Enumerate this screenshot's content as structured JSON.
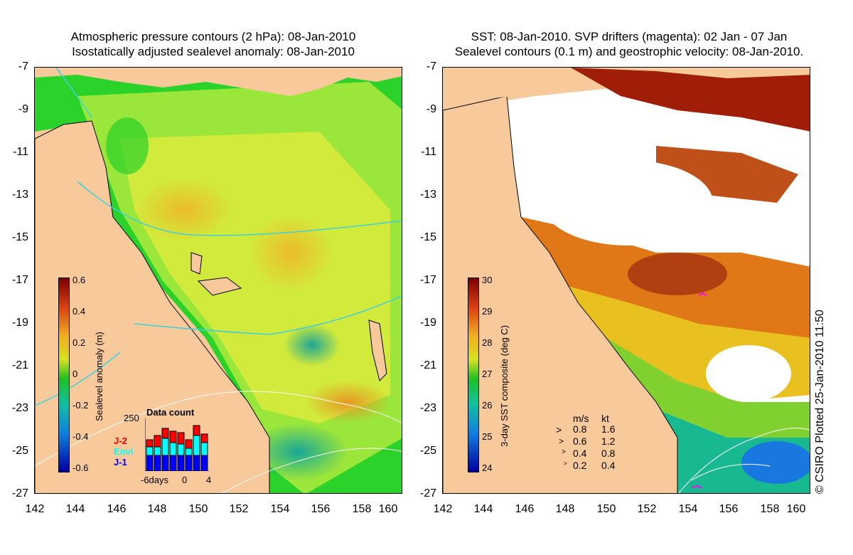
{
  "left_panel": {
    "title_line1": "Atmospheric pressure contours (2 hPa): 08-Jan-2010",
    "title_line2": "Isostatically adjusted sealevel anomaly: 08-Jan-2010",
    "y_ticks": [
      "-7",
      "-9",
      "-11",
      "-13",
      "-15",
      "-17",
      "-19",
      "-21",
      "-23",
      "-25",
      "-27"
    ],
    "x_ticks": [
      "142",
      "144",
      "146",
      "148",
      "150",
      "152",
      "154",
      "156",
      "158",
      "160"
    ],
    "colorbar": {
      "label": "Sealevel anomaly (m)",
      "ticks": [
        "0.6",
        "0.4",
        "0.2",
        "0",
        "-0.2",
        "-0.4",
        "-0.6"
      ],
      "min": -0.6,
      "max": 0.6
    },
    "data_count": {
      "title": "Data count",
      "max_label": "250",
      "axis_labels": [
        "-6days",
        "0",
        "4"
      ],
      "missions": [
        {
          "name": "J-2",
          "color": "#ff0000"
        },
        {
          "name": "Envi",
          "color": "#00ffff"
        },
        {
          "name": "J-1",
          "color": "#0000ff"
        }
      ]
    }
  },
  "right_panel": {
    "title_line1": "SST: 08-Jan-2010. SVP drifters (magenta): 02 Jan - 07 Jan",
    "title_line2": "Sealevel contours (0.1 m) and geostrophic velocity: 08-Jan-2010.",
    "y_ticks": [
      "-7",
      "-9",
      "-11",
      "-13",
      "-15",
      "-17",
      "-19",
      "-21",
      "-23",
      "-25",
      "-27"
    ],
    "x_ticks": [
      "142",
      "144",
      "146",
      "148",
      "150",
      "152",
      "154",
      "156",
      "158",
      "160"
    ],
    "colorbar": {
      "label": "3-day SST composite (deg C)",
      "ticks": [
        "30",
        "29",
        "28",
        "27",
        "26",
        "25",
        "24"
      ],
      "min": 24,
      "max": 30
    },
    "velocity_legend": {
      "header_ms": "m/s",
      "header_kt": "kt",
      "rows": [
        {
          "ms": "0.8",
          "kt": "1.6"
        },
        {
          "ms": "0.6",
          "kt": "1.2"
        },
        {
          "ms": "0.4",
          "kt": "0.8"
        },
        {
          "ms": "0.2",
          "kt": "0.4"
        }
      ]
    }
  },
  "credit": "© CSIRO Plotted 25-Jan-2010 11:50",
  "colors": {
    "land": "#f8c99b",
    "anomaly_low": "#0a1a8c",
    "anomaly_zero": "#1ec81e",
    "anomaly_high": "#8c0a0a",
    "sst_warm": "#a01e08",
    "pressure_contour": "#3cd2dc",
    "drifter": "#ff00ff"
  }
}
